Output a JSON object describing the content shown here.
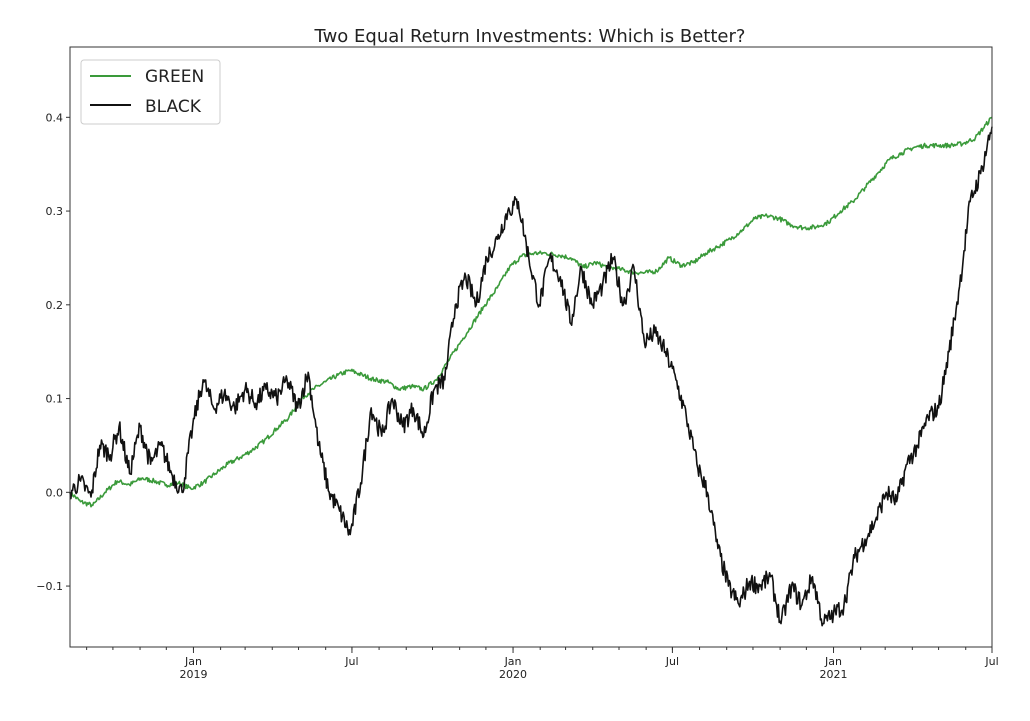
{
  "chart_data": {
    "type": "line",
    "title": "Two Equal Return Investments: Which is Better?",
    "xlabel": "",
    "ylabel": "",
    "xlim": [
      "2018-08-13",
      "2021-07-01"
    ],
    "ylim": [
      -0.165,
      0.475
    ],
    "yticks": [
      -0.1,
      0.0,
      0.1,
      0.2,
      0.3,
      0.4
    ],
    "ytick_labels": [
      "−0.1",
      "0.0",
      "0.1",
      "0.2",
      "0.3",
      "0.4"
    ],
    "xticks": [
      {
        "date": "2019-01-01",
        "label": "Jan",
        "sublabel": "2019"
      },
      {
        "date": "2019-07-01",
        "label": "Jul",
        "sublabel": ""
      },
      {
        "date": "2020-01-01",
        "label": "Jan",
        "sublabel": "2020"
      },
      {
        "date": "2020-07-01",
        "label": "Jul",
        "sublabel": ""
      },
      {
        "date": "2021-01-01",
        "label": "Jan",
        "sublabel": "2021"
      },
      {
        "date": "2021-07-01",
        "label": "Jul",
        "sublabel": ""
      }
    ],
    "grid": false,
    "legend_position": "upper-left",
    "series": [
      {
        "name": "GREEN",
        "color": "#3a9a3a",
        "points": [
          [
            "2018-08-13",
            0.0
          ],
          [
            "2018-08-25",
            -0.01
          ],
          [
            "2018-09-08",
            -0.014
          ],
          [
            "2018-09-22",
            0.0
          ],
          [
            "2018-10-06",
            0.012
          ],
          [
            "2018-10-20",
            0.008
          ],
          [
            "2018-11-03",
            0.015
          ],
          [
            "2018-11-17",
            0.012
          ],
          [
            "2018-12-01",
            0.008
          ],
          [
            "2018-12-15",
            0.01
          ],
          [
            "2018-12-29",
            0.004
          ],
          [
            "2019-01-12",
            0.01
          ],
          [
            "2019-01-26",
            0.02
          ],
          [
            "2019-02-09",
            0.03
          ],
          [
            "2019-02-23",
            0.037
          ],
          [
            "2019-03-09",
            0.045
          ],
          [
            "2019-03-23",
            0.055
          ],
          [
            "2019-04-06",
            0.068
          ],
          [
            "2019-04-20",
            0.08
          ],
          [
            "2019-05-04",
            0.1
          ],
          [
            "2019-05-18",
            0.11
          ],
          [
            "2019-06-01",
            0.118
          ],
          [
            "2019-06-15",
            0.125
          ],
          [
            "2019-06-29",
            0.13
          ],
          [
            "2019-07-13",
            0.125
          ],
          [
            "2019-07-27",
            0.12
          ],
          [
            "2019-08-10",
            0.118
          ],
          [
            "2019-08-24",
            0.11
          ],
          [
            "2019-09-07",
            0.113
          ],
          [
            "2019-09-21",
            0.11
          ],
          [
            "2019-10-05",
            0.12
          ],
          [
            "2019-10-19",
            0.14
          ],
          [
            "2019-11-02",
            0.16
          ],
          [
            "2019-11-16",
            0.18
          ],
          [
            "2019-11-30",
            0.2
          ],
          [
            "2019-12-14",
            0.218
          ],
          [
            "2019-12-28",
            0.24
          ],
          [
            "2020-01-11",
            0.252
          ],
          [
            "2020-01-25",
            0.255
          ],
          [
            "2020-02-08",
            0.255
          ],
          [
            "2020-02-22",
            0.253
          ],
          [
            "2020-03-07",
            0.25
          ],
          [
            "2020-03-21",
            0.24
          ],
          [
            "2020-04-04",
            0.245
          ],
          [
            "2020-04-18",
            0.24
          ],
          [
            "2020-05-02",
            0.238
          ],
          [
            "2020-05-16",
            0.235
          ],
          [
            "2020-05-30",
            0.234
          ],
          [
            "2020-06-13",
            0.236
          ],
          [
            "2020-06-27",
            0.25
          ],
          [
            "2020-07-11",
            0.242
          ],
          [
            "2020-07-25",
            0.245
          ],
          [
            "2020-08-08",
            0.255
          ],
          [
            "2020-08-22",
            0.262
          ],
          [
            "2020-09-05",
            0.27
          ],
          [
            "2020-09-19",
            0.28
          ],
          [
            "2020-10-03",
            0.292
          ],
          [
            "2020-10-17",
            0.295
          ],
          [
            "2020-10-31",
            0.292
          ],
          [
            "2020-11-14",
            0.285
          ],
          [
            "2020-11-28",
            0.282
          ],
          [
            "2020-12-12",
            0.283
          ],
          [
            "2020-12-26",
            0.288
          ],
          [
            "2021-01-09",
            0.3
          ],
          [
            "2021-01-23",
            0.31
          ],
          [
            "2021-02-06",
            0.325
          ],
          [
            "2021-02-20",
            0.34
          ],
          [
            "2021-03-06",
            0.355
          ],
          [
            "2021-03-20",
            0.362
          ],
          [
            "2021-04-03",
            0.368
          ],
          [
            "2021-04-17",
            0.37
          ],
          [
            "2021-05-01",
            0.37
          ],
          [
            "2021-05-15",
            0.37
          ],
          [
            "2021-05-29",
            0.372
          ],
          [
            "2021-06-12",
            0.378
          ],
          [
            "2021-07-01",
            0.4
          ]
        ]
      },
      {
        "name": "BLACK",
        "color": "#111111",
        "points": [
          [
            "2018-08-13",
            0.0
          ],
          [
            "2018-08-25",
            0.012
          ],
          [
            "2018-09-06",
            -0.005
          ],
          [
            "2018-09-16",
            0.05
          ],
          [
            "2018-09-28",
            0.04
          ],
          [
            "2018-10-08",
            0.07
          ],
          [
            "2018-10-20",
            0.02
          ],
          [
            "2018-11-01",
            0.07
          ],
          [
            "2018-11-13",
            0.03
          ],
          [
            "2018-11-25",
            0.05
          ],
          [
            "2018-12-07",
            0.02
          ],
          [
            "2018-12-19",
            0.0
          ],
          [
            "2018-12-31",
            0.07
          ],
          [
            "2019-01-12",
            0.12
          ],
          [
            "2019-01-24",
            0.09
          ],
          [
            "2019-02-05",
            0.105
          ],
          [
            "2019-02-17",
            0.09
          ],
          [
            "2019-03-01",
            0.11
          ],
          [
            "2019-03-13",
            0.095
          ],
          [
            "2019-03-25",
            0.11
          ],
          [
            "2019-04-06",
            0.1
          ],
          [
            "2019-04-18",
            0.12
          ],
          [
            "2019-04-30",
            0.09
          ],
          [
            "2019-05-12",
            0.128
          ],
          [
            "2019-05-24",
            0.05
          ],
          [
            "2019-06-05",
            0.0
          ],
          [
            "2019-06-17",
            -0.02
          ],
          [
            "2019-06-29",
            -0.045
          ],
          [
            "2019-07-11",
            0.01
          ],
          [
            "2019-07-23",
            0.09
          ],
          [
            "2019-08-04",
            0.06
          ],
          [
            "2019-08-16",
            0.1
          ],
          [
            "2019-08-28",
            0.07
          ],
          [
            "2019-09-09",
            0.09
          ],
          [
            "2019-09-21",
            0.06
          ],
          [
            "2019-10-03",
            0.11
          ],
          [
            "2019-10-15",
            0.12
          ],
          [
            "2019-10-27",
            0.2
          ],
          [
            "2019-11-08",
            0.23
          ],
          [
            "2019-11-20",
            0.2
          ],
          [
            "2019-12-02",
            0.25
          ],
          [
            "2019-12-14",
            0.27
          ],
          [
            "2019-12-26",
            0.3
          ],
          [
            "2020-01-07",
            0.31
          ],
          [
            "2020-01-19",
            0.25
          ],
          [
            "2020-01-31",
            0.2
          ],
          [
            "2020-02-12",
            0.25
          ],
          [
            "2020-02-24",
            0.23
          ],
          [
            "2020-03-07",
            0.18
          ],
          [
            "2020-03-19",
            0.24
          ],
          [
            "2020-03-31",
            0.2
          ],
          [
            "2020-04-12",
            0.22
          ],
          [
            "2020-04-24",
            0.25
          ],
          [
            "2020-05-06",
            0.2
          ],
          [
            "2020-05-18",
            0.24
          ],
          [
            "2020-05-30",
            0.16
          ],
          [
            "2020-06-11",
            0.17
          ],
          [
            "2020-06-23",
            0.15
          ],
          [
            "2020-07-05",
            0.12
          ],
          [
            "2020-07-17",
            0.08
          ],
          [
            "2020-07-29",
            0.03
          ],
          [
            "2020-08-10",
            0.0
          ],
          [
            "2020-08-22",
            -0.06
          ],
          [
            "2020-09-03",
            -0.1
          ],
          [
            "2020-09-15",
            -0.12
          ],
          [
            "2020-09-27",
            -0.095
          ],
          [
            "2020-10-09",
            -0.1
          ],
          [
            "2020-10-21",
            -0.09
          ],
          [
            "2020-11-02",
            -0.14
          ],
          [
            "2020-11-14",
            -0.1
          ],
          [
            "2020-11-26",
            -0.12
          ],
          [
            "2020-12-08",
            -0.09
          ],
          [
            "2020-12-20",
            -0.14
          ],
          [
            "2021-01-01",
            -0.13
          ],
          [
            "2021-01-13",
            -0.12
          ],
          [
            "2021-01-25",
            -0.07
          ],
          [
            "2021-02-06",
            -0.05
          ],
          [
            "2021-02-18",
            -0.03
          ],
          [
            "2021-03-02",
            0.0
          ],
          [
            "2021-03-14",
            -0.01
          ],
          [
            "2021-03-26",
            0.03
          ],
          [
            "2021-04-07",
            0.05
          ],
          [
            "2021-04-19",
            0.08
          ],
          [
            "2021-05-01",
            0.09
          ],
          [
            "2021-05-13",
            0.15
          ],
          [
            "2021-05-25",
            0.22
          ],
          [
            "2021-06-06",
            0.31
          ],
          [
            "2021-06-18",
            0.34
          ],
          [
            "2021-07-01",
            0.39
          ]
        ]
      }
    ]
  },
  "legend": {
    "items": [
      {
        "label": "GREEN",
        "color": "#3a9a3a"
      },
      {
        "label": "BLACK",
        "color": "#111111"
      }
    ]
  }
}
